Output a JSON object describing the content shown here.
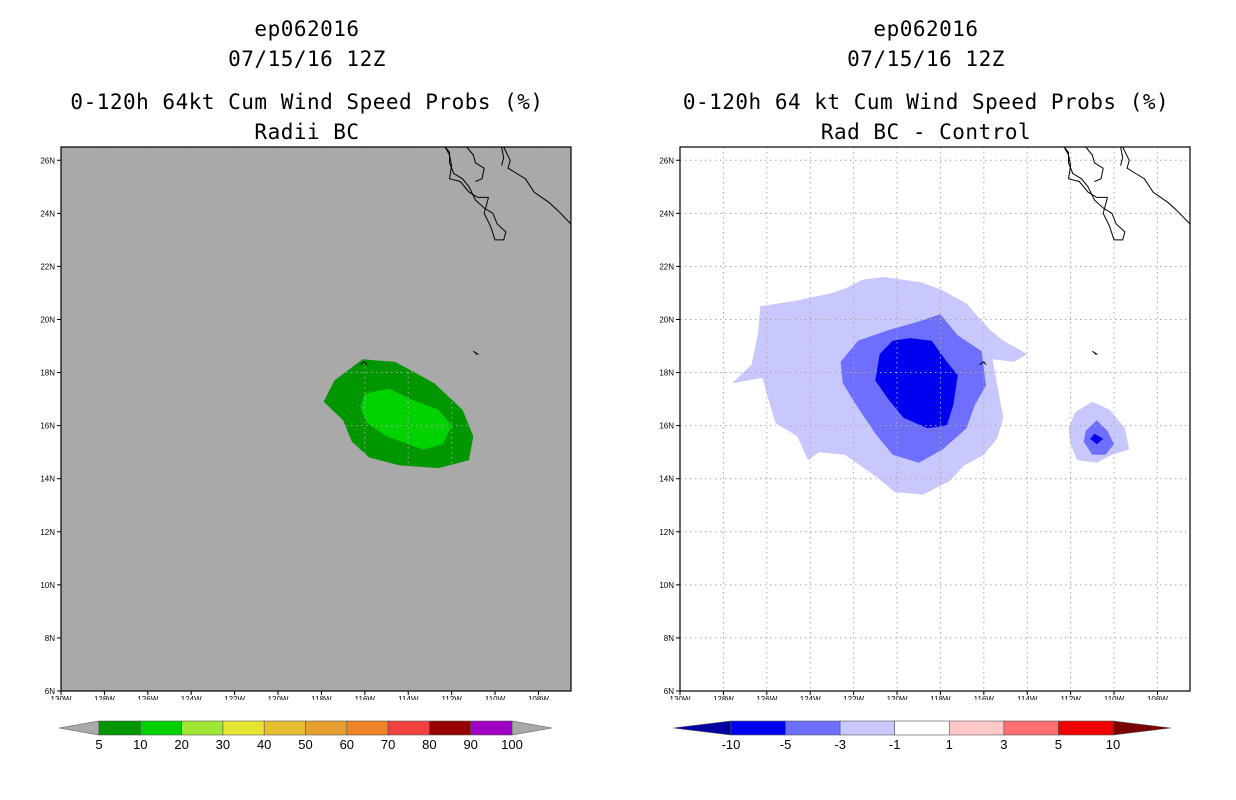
{
  "chart_data": [
    {
      "type": "heatmap",
      "subtype": "filled-contour-map",
      "storm_id": "ep062016",
      "datetime": "07/15/16 12Z",
      "title": "0-120h 64kt Cum Wind Speed Probs (%)",
      "subtitle": "Radii BC",
      "lon_range": [
        -130,
        -106.5
      ],
      "lat_range": [
        6,
        26.5
      ],
      "x_ticks": [
        "130W",
        "128W",
        "126W",
        "124W",
        "122W",
        "120W",
        "118W",
        "116W",
        "114W",
        "112W",
        "110W",
        "108W"
      ],
      "y_ticks": [
        "6N",
        "8N",
        "10N",
        "12N",
        "14N",
        "16N",
        "18N",
        "20N",
        "22N",
        "24N",
        "26N"
      ],
      "background_color": "#a9a9a9",
      "gridlines": true,
      "contours": [
        {
          "level": "5-10",
          "color": "#009600",
          "lonlat": [
            [
              -116.1,
              18.5
            ],
            [
              -114.6,
              18.4
            ],
            [
              -112.8,
              17.6
            ],
            [
              -111.5,
              16.6
            ],
            [
              -111.0,
              15.6
            ],
            [
              -111.2,
              14.7
            ],
            [
              -112.6,
              14.4
            ],
            [
              -114.4,
              14.5
            ],
            [
              -115.8,
              14.8
            ],
            [
              -116.6,
              15.4
            ],
            [
              -117.0,
              16.2
            ],
            [
              -117.9,
              16.9
            ],
            [
              -117.4,
              17.7
            ]
          ]
        },
        {
          "level": "10-20",
          "color": "#00d200",
          "lonlat": [
            [
              -116.0,
              17.2
            ],
            [
              -114.9,
              17.4
            ],
            [
              -113.9,
              17.0
            ],
            [
              -112.6,
              16.6
            ],
            [
              -112.0,
              16.0
            ],
            [
              -112.4,
              15.3
            ],
            [
              -113.3,
              15.1
            ],
            [
              -114.0,
              15.3
            ],
            [
              -115.0,
              15.6
            ],
            [
              -115.9,
              16.1
            ],
            [
              -116.2,
              16.7
            ]
          ]
        }
      ],
      "colorbar": {
        "labels": [
          "5",
          "10",
          "20",
          "30",
          "40",
          "50",
          "60",
          "70",
          "80",
          "90",
          "100"
        ],
        "colors": [
          "#009600",
          "#00d200",
          "#a0e632",
          "#e6e632",
          "#e6be32",
          "#e6a032",
          "#f08228",
          "#f04040",
          "#960000",
          "#a000c8"
        ],
        "under_color": "#a9a9a9",
        "over_color": "#a9a9a9"
      }
    },
    {
      "type": "heatmap",
      "subtype": "filled-contour-map",
      "storm_id": "ep062016",
      "datetime": "07/15/16 12Z",
      "title": "0-120h 64 kt Cum Wind Speed Probs (%)",
      "subtitle": "Rad BC - Control",
      "lon_range": [
        -130,
        -106.5
      ],
      "lat_range": [
        6,
        26.5
      ],
      "x_ticks": [
        "130W",
        "128W",
        "126W",
        "124W",
        "122W",
        "120W",
        "118W",
        "116W",
        "114W",
        "112W",
        "110W",
        "108W"
      ],
      "y_ticks": [
        "6N",
        "8N",
        "10N",
        "12N",
        "14N",
        "16N",
        "18N",
        "20N",
        "22N",
        "24N",
        "26N"
      ],
      "background_color": "#ffffff",
      "gridlines": true,
      "contours": [
        {
          "level": "-3 to -1",
          "color": "#c8c8ff",
          "lonlat": [
            [
              -121.6,
              21.5
            ],
            [
              -120.6,
              21.6
            ],
            [
              -118.9,
              21.4
            ],
            [
              -117.9,
              21.1
            ],
            [
              -116.8,
              20.6
            ],
            [
              -115.7,
              19.6
            ],
            [
              -115.1,
              19.2
            ],
            [
              -114.0,
              18.7
            ],
            [
              -114.6,
              18.4
            ],
            [
              -115.6,
              18.5
            ],
            [
              -115.4,
              17.6
            ],
            [
              -115.1,
              16.3
            ],
            [
              -115.4,
              15.5
            ],
            [
              -116.0,
              14.9
            ],
            [
              -116.9,
              14.5
            ],
            [
              -117.6,
              13.9
            ],
            [
              -118.8,
              13.4
            ],
            [
              -120.1,
              13.5
            ],
            [
              -121.0,
              14.1
            ],
            [
              -122.4,
              14.9
            ],
            [
              -123.6,
              15.0
            ],
            [
              -124.1,
              14.7
            ],
            [
              -124.6,
              15.6
            ],
            [
              -125.6,
              16.1
            ],
            [
              -126.0,
              17.2
            ],
            [
              -126.2,
              17.8
            ],
            [
              -127.6,
              17.6
            ],
            [
              -126.7,
              18.3
            ],
            [
              -126.4,
              19.5
            ],
            [
              -126.3,
              20.5
            ],
            [
              -124.7,
              20.7
            ],
            [
              -123.0,
              21.0
            ],
            [
              -122.3,
              21.2
            ]
          ]
        },
        {
          "level": "-3 to -1",
          "color": "#c8c8ff",
          "lonlat": [
            [
              -111.0,
              16.9
            ],
            [
              -110.2,
              16.6
            ],
            [
              -109.5,
              15.9
            ],
            [
              -109.3,
              15.1
            ],
            [
              -110.1,
              14.9
            ],
            [
              -110.8,
              14.6
            ],
            [
              -111.7,
              14.7
            ],
            [
              -112.0,
              15.3
            ],
            [
              -112.1,
              15.9
            ],
            [
              -111.8,
              16.5
            ]
          ]
        },
        {
          "level": "-5 to -3",
          "color": "#6e6eff",
          "lonlat": [
            [
              -120.4,
              19.6
            ],
            [
              -119.1,
              19.9
            ],
            [
              -118.0,
              20.2
            ],
            [
              -117.2,
              19.4
            ],
            [
              -116.1,
              18.8
            ],
            [
              -115.9,
              17.5
            ],
            [
              -116.4,
              16.8
            ],
            [
              -116.8,
              15.9
            ],
            [
              -117.9,
              15.1
            ],
            [
              -119.0,
              14.6
            ],
            [
              -120.2,
              14.9
            ],
            [
              -121.0,
              15.7
            ],
            [
              -121.9,
              16.8
            ],
            [
              -122.5,
              17.6
            ],
            [
              -122.6,
              18.4
            ],
            [
              -121.8,
              19.2
            ]
          ]
        },
        {
          "level": "-5 to -3",
          "color": "#6e6eff",
          "lonlat": [
            [
              -110.8,
              16.2
            ],
            [
              -110.3,
              15.8
            ],
            [
              -110.0,
              15.3
            ],
            [
              -110.4,
              14.9
            ],
            [
              -111.0,
              14.9
            ],
            [
              -111.4,
              15.4
            ],
            [
              -111.3,
              15.8
            ]
          ]
        },
        {
          "level": "-10 to -5",
          "color": "#0000f0",
          "lonlat": [
            [
              -120.2,
              19.2
            ],
            [
              -119.4,
              19.3
            ],
            [
              -118.4,
              19.2
            ],
            [
              -117.7,
              18.4
            ],
            [
              -117.2,
              17.9
            ],
            [
              -117.4,
              16.8
            ],
            [
              -117.7,
              16.0
            ],
            [
              -118.6,
              15.9
            ],
            [
              -119.7,
              16.3
            ],
            [
              -120.4,
              17.0
            ],
            [
              -121.0,
              17.7
            ],
            [
              -120.8,
              18.7
            ]
          ]
        },
        {
          "level": "-10 to -5",
          "color": "#0000f0",
          "lonlat": [
            [
              -110.9,
              15.7
            ],
            [
              -110.5,
              15.5
            ],
            [
              -110.8,
              15.3
            ],
            [
              -111.1,
              15.5
            ]
          ]
        }
      ],
      "colorbar": {
        "labels": [
          "-10",
          "-5",
          "-3",
          "-1",
          "1",
          "3",
          "5",
          "10"
        ],
        "colors": [
          "#0000f0",
          "#6e6eff",
          "#c8c8ff",
          "#ffffff",
          "#ffc8c8",
          "#ff6e6e",
          "#f00000"
        ],
        "under_color": "#0000a0",
        "over_color": "#780000"
      }
    }
  ],
  "coastlines": [
    [
      [
        -110.3,
        24.6
      ],
      [
        -110.5,
        24.0
      ],
      [
        -110.2,
        23.5
      ],
      [
        -110.0,
        23.0
      ],
      [
        -109.6,
        23.0
      ],
      [
        -109.5,
        23.3
      ],
      [
        -109.9,
        23.6
      ],
      [
        -110.1,
        24.0
      ],
      [
        -110.5,
        24.2
      ],
      [
        -110.9,
        24.5
      ],
      [
        -111.2,
        25.0
      ],
      [
        -111.5,
        25.3
      ],
      [
        -111.9,
        25.5
      ],
      [
        -112.1,
        25.9
      ],
      [
        -112.1,
        26.3
      ],
      [
        -112.3,
        26.5
      ]
    ],
    [
      [
        -112.3,
        26.5
      ],
      [
        -112.1,
        26.2
      ],
      [
        -112.0,
        25.8
      ],
      [
        -112.1,
        25.3
      ],
      [
        -111.6,
        25.2
      ],
      [
        -111.2,
        24.8
      ],
      [
        -110.8,
        24.6
      ],
      [
        -110.3,
        24.6
      ]
    ],
    [
      [
        -111.3,
        26.5
      ],
      [
        -111.0,
        26.2
      ],
      [
        -110.9,
        25.9
      ],
      [
        -110.5,
        25.7
      ],
      [
        -110.6,
        25.3
      ],
      [
        -110.9,
        25.2
      ]
    ],
    [
      [
        -109.6,
        26.5
      ],
      [
        -109.3,
        26.0
      ],
      [
        -109.4,
        25.7
      ],
      [
        -109.0,
        25.5
      ],
      [
        -108.6,
        25.3
      ],
      [
        -108.2,
        24.8
      ],
      [
        -107.5,
        24.4
      ],
      [
        -107.1,
        24.1
      ],
      [
        -106.5,
        23.6
      ]
    ],
    [
      [
        -109.7,
        26.5
      ],
      [
        -109.6,
        26.1
      ],
      [
        -109.7,
        25.8
      ]
    ],
    [
      [
        -111.0,
        18.8
      ],
      [
        -110.8,
        18.7
      ],
      [
        -110.9,
        18.7
      ]
    ],
    [
      [
        -115.9,
        18.3
      ],
      [
        -116.0,
        18.4
      ],
      [
        -116.2,
        18.3
      ]
    ]
  ]
}
